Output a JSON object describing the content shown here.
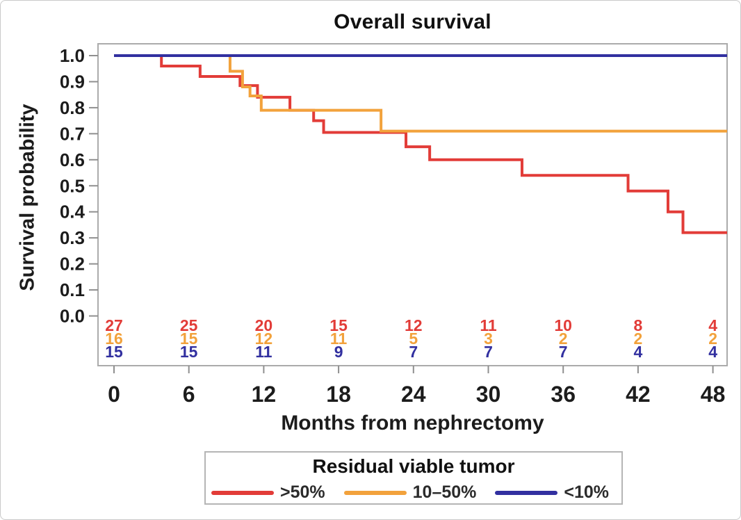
{
  "figure": {
    "title": "Overall survival",
    "x_axis_label": "Months from nephrectomy",
    "y_axis_label": "Survival probability"
  },
  "legend": {
    "title": "Residual viable tumor",
    "entries": [
      {
        "key": "gt50",
        "label": ">50%",
        "color": "#e23c38"
      },
      {
        "key": "mid",
        "label": "10–50%",
        "color": "#f2a23c"
      },
      {
        "key": "lt10",
        "label": "<10%",
        "color": "#3230a0"
      }
    ]
  },
  "chart_data": {
    "type": "line",
    "subtype": "kaplan-meier-step",
    "title": "Overall survival",
    "xlabel": "Months from nephrectomy",
    "ylabel": "Survival probability",
    "xlim": [
      0,
      49.1
    ],
    "ylim": [
      0.0,
      1.0
    ],
    "x_ticks": [
      0,
      6,
      12,
      18,
      24,
      30,
      36,
      42,
      48
    ],
    "y_ticks": [
      1.0,
      0.9,
      0.8,
      0.7,
      0.6,
      0.5,
      0.4,
      0.3,
      0.2,
      0.1,
      0.0
    ],
    "grid": false,
    "legend_position": "bottom",
    "series": [
      {
        "name": ">50%",
        "color": "#e23c38",
        "steps": [
          [
            0,
            1.0
          ],
          [
            3.8,
            0.96
          ],
          [
            6.9,
            0.92
          ],
          [
            10.1,
            0.885
          ],
          [
            11.5,
            0.84
          ],
          [
            14.1,
            0.79
          ],
          [
            16.0,
            0.75
          ],
          [
            16.8,
            0.705
          ],
          [
            23.4,
            0.65
          ],
          [
            25.3,
            0.6
          ],
          [
            32.7,
            0.54
          ],
          [
            41.2,
            0.48
          ],
          [
            44.4,
            0.4
          ],
          [
            45.6,
            0.32
          ]
        ]
      },
      {
        "name": "10–50%",
        "color": "#f2a23c",
        "steps": [
          [
            0,
            1.0
          ],
          [
            9.3,
            0.94
          ],
          [
            10.3,
            0.88
          ],
          [
            10.9,
            0.845
          ],
          [
            11.8,
            0.79
          ],
          [
            21.4,
            0.71
          ]
        ]
      },
      {
        "name": "<10%",
        "color": "#3230a0",
        "steps": [
          [
            0,
            1.0
          ]
        ]
      }
    ],
    "at_risk": {
      "times": [
        0,
        6,
        12,
        18,
        24,
        30,
        36,
        42,
        48
      ],
      "rows": [
        {
          "name": ">50%",
          "color": "#e23c38",
          "counts": [
            27,
            25,
            20,
            15,
            12,
            11,
            10,
            8,
            4
          ]
        },
        {
          "name": "10–50%",
          "color": "#f2a23c",
          "counts": [
            16,
            15,
            12,
            11,
            5,
            3,
            2,
            2,
            2
          ]
        },
        {
          "name": "<10%",
          "color": "#3230a0",
          "counts": [
            15,
            15,
            11,
            9,
            7,
            7,
            7,
            4,
            4
          ]
        }
      ]
    }
  }
}
